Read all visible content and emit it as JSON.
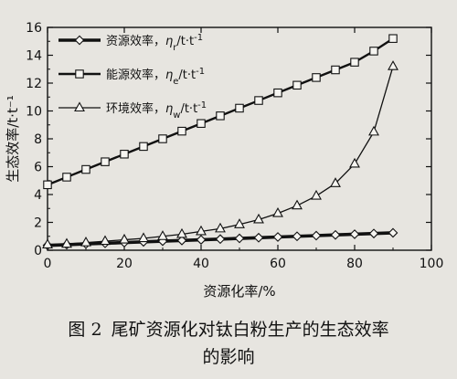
{
  "chart_data": {
    "type": "line",
    "xlabel": "资源化率/%",
    "ylabel": "生态效率/t·t⁻¹",
    "xlim": [
      0,
      100
    ],
    "ylim": [
      0,
      16
    ],
    "xticks": [
      0,
      20,
      40,
      60,
      80,
      100
    ],
    "yticks": [
      0,
      2,
      4,
      6,
      8,
      10,
      12,
      14,
      16
    ],
    "x_tick_labels": [
      "0",
      "20",
      "40",
      "60",
      "80",
      "100"
    ],
    "y_tick_labels": [
      "0",
      "2",
      "4",
      "6",
      "8",
      "10",
      "12",
      "14",
      "16"
    ],
    "grid": false,
    "legend_position": "top-left",
    "series": [
      {
        "name": "资源效率，η_r/t·t⁻¹",
        "marker": "diamond",
        "x": [
          0,
          5,
          10,
          15,
          20,
          25,
          30,
          35,
          40,
          45,
          50,
          55,
          60,
          65,
          70,
          75,
          80,
          85,
          90
        ],
        "y": [
          0.35,
          0.4,
          0.45,
          0.5,
          0.55,
          0.6,
          0.65,
          0.7,
          0.75,
          0.8,
          0.85,
          0.9,
          0.95,
          1.0,
          1.05,
          1.1,
          1.15,
          1.2,
          1.25
        ]
      },
      {
        "name": "能源效率，η_e/t·t⁻¹",
        "marker": "square",
        "x": [
          0,
          5,
          10,
          15,
          20,
          25,
          30,
          35,
          40,
          45,
          50,
          55,
          60,
          65,
          70,
          75,
          80,
          85,
          90
        ],
        "y": [
          4.7,
          5.25,
          5.8,
          6.35,
          6.9,
          7.45,
          8.0,
          8.55,
          9.1,
          9.65,
          10.2,
          10.75,
          11.3,
          11.85,
          12.4,
          12.95,
          13.5,
          14.3,
          15.2
        ]
      },
      {
        "name": "环境效率，η_w/t·t⁻¹",
        "marker": "triangle",
        "x": [
          0,
          5,
          10,
          15,
          20,
          25,
          30,
          35,
          40,
          45,
          50,
          55,
          60,
          65,
          70,
          75,
          80,
          85,
          90
        ],
        "y": [
          0.4,
          0.45,
          0.55,
          0.65,
          0.75,
          0.85,
          1.0,
          1.15,
          1.35,
          1.55,
          1.85,
          2.2,
          2.65,
          3.2,
          3.9,
          4.8,
          6.2,
          8.5,
          13.2
        ]
      }
    ],
    "legend": [
      {
        "label": "资源效率，",
        "sym": "η",
        "sub": "r",
        "unit": "/t·t",
        "sup": "-1",
        "marker": "diamond"
      },
      {
        "label": "能源效率，",
        "sym": "η",
        "sub": "e",
        "unit": "/t·t",
        "sup": "-1",
        "marker": "square"
      },
      {
        "label": "环境效率，",
        "sym": "η",
        "sub": "w",
        "unit": "/t·t",
        "sup": "-1",
        "marker": "triangle"
      }
    ]
  },
  "caption": {
    "fig_no": "图 2",
    "line1": "尾矿资源化对钛白粉生产的生态效率",
    "line2": "的影响"
  },
  "colors": {
    "background": "#e7e5e0",
    "ink": "#111111"
  }
}
